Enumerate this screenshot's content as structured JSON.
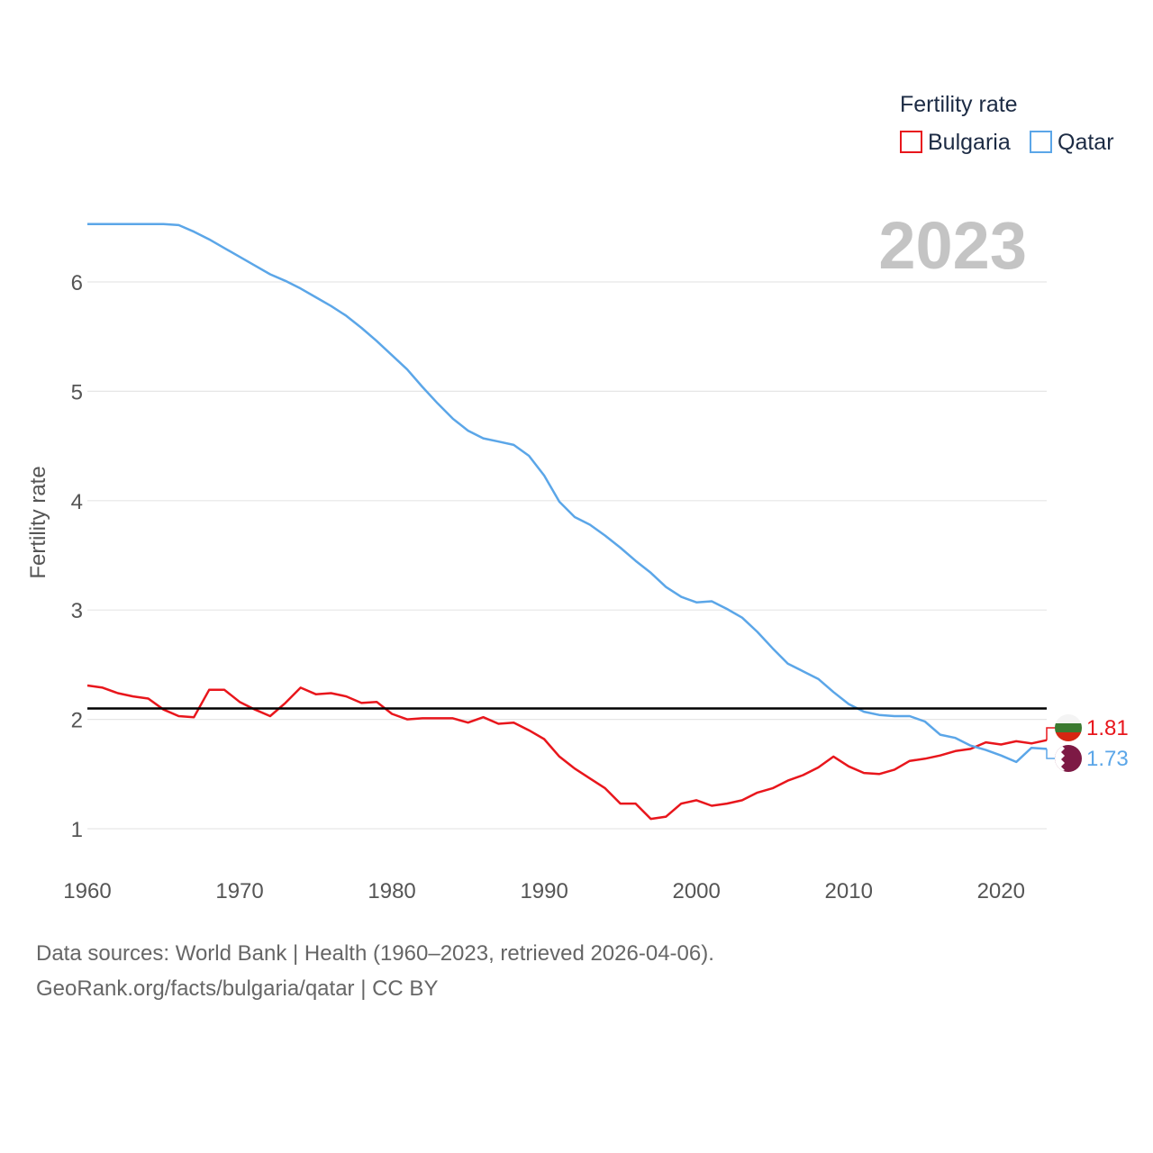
{
  "chart_data": {
    "type": "line",
    "title": "",
    "legend_title": "Fertility rate",
    "ylabel": "Fertility rate",
    "xlabel": "",
    "year_label": "2023",
    "xlim": [
      1960,
      2023
    ],
    "ylim": [
      0.5,
      6.8
    ],
    "x_ticks": [
      1960,
      1970,
      1980,
      1990,
      2000,
      2010,
      2020
    ],
    "y_ticks": [
      1,
      2,
      3,
      4,
      5,
      6
    ],
    "reference_line": 2.1,
    "legend_position": "top-right",
    "x": [
      1960,
      1961,
      1962,
      1963,
      1964,
      1965,
      1966,
      1967,
      1968,
      1969,
      1970,
      1971,
      1972,
      1973,
      1974,
      1975,
      1976,
      1977,
      1978,
      1979,
      1980,
      1981,
      1982,
      1983,
      1984,
      1985,
      1986,
      1987,
      1988,
      1989,
      1990,
      1991,
      1992,
      1993,
      1994,
      1995,
      1996,
      1997,
      1998,
      1999,
      2000,
      2001,
      2002,
      2003,
      2004,
      2005,
      2006,
      2007,
      2008,
      2009,
      2010,
      2011,
      2012,
      2013,
      2014,
      2015,
      2016,
      2017,
      2018,
      2019,
      2020,
      2021,
      2022,
      2023
    ],
    "series": [
      {
        "name": "Bulgaria",
        "color": "#e8161c",
        "end_label": "1.81",
        "values": [
          2.31,
          2.29,
          2.24,
          2.21,
          2.19,
          2.09,
          2.03,
          2.02,
          2.27,
          2.27,
          2.16,
          2.09,
          2.03,
          2.15,
          2.29,
          2.23,
          2.24,
          2.21,
          2.15,
          2.16,
          2.05,
          2.0,
          2.01,
          2.01,
          2.01,
          1.97,
          2.02,
          1.96,
          1.97,
          1.9,
          1.82,
          1.66,
          1.55,
          1.46,
          1.37,
          1.23,
          1.23,
          1.09,
          1.11,
          1.23,
          1.26,
          1.21,
          1.23,
          1.26,
          1.33,
          1.37,
          1.44,
          1.49,
          1.56,
          1.66,
          1.57,
          1.51,
          1.5,
          1.54,
          1.62,
          1.64,
          1.67,
          1.71,
          1.73,
          1.79,
          1.77,
          1.8,
          1.78,
          1.81
        ]
      },
      {
        "name": "Qatar",
        "color": "#5ba6e8",
        "end_label": "1.73",
        "values": [
          6.53,
          6.53,
          6.53,
          6.53,
          6.53,
          6.53,
          6.52,
          6.46,
          6.39,
          6.31,
          6.23,
          6.15,
          6.07,
          6.01,
          5.94,
          5.86,
          5.78,
          5.69,
          5.58,
          5.46,
          5.33,
          5.2,
          5.04,
          4.89,
          4.75,
          4.64,
          4.57,
          4.54,
          4.51,
          4.41,
          4.23,
          3.99,
          3.85,
          3.78,
          3.68,
          3.57,
          3.45,
          3.34,
          3.21,
          3.12,
          3.07,
          3.08,
          3.01,
          2.93,
          2.8,
          2.65,
          2.51,
          2.44,
          2.37,
          2.25,
          2.14,
          2.07,
          2.04,
          2.03,
          2.03,
          1.98,
          1.86,
          1.83,
          1.76,
          1.72,
          1.67,
          1.61,
          1.74,
          1.73
        ]
      }
    ]
  },
  "footer": {
    "source_line": "Data sources: World Bank | Health (1960–2023, retrieved 2026-04-06).",
    "credit_line": "GeoRank.org/facts/bulgaria/qatar | CC BY"
  }
}
